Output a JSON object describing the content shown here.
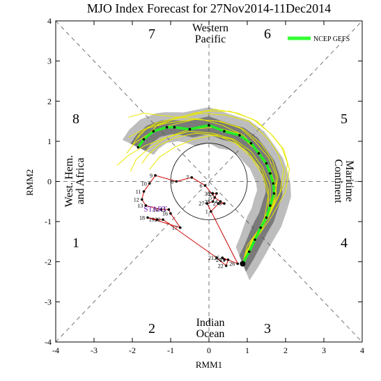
{
  "chart_data": {
    "type": "scatter",
    "title": "MJO Index Forecast for 27Nov2014-11Dec2014",
    "xlabel": "RMM1",
    "ylabel": "RMM2",
    "xlim": [
      -4,
      4
    ],
    "ylim": [
      -4,
      4
    ],
    "xticks": [
      "-4",
      "-3",
      "-2",
      "-1",
      "0",
      "1",
      "2",
      "3",
      "4"
    ],
    "yticks": [
      "-4",
      "-3",
      "-2",
      "-1",
      "0",
      "1",
      "2",
      "3",
      "4"
    ],
    "phases": [
      "1",
      "2",
      "3",
      "4",
      "5",
      "6",
      "7",
      "8"
    ],
    "regions": {
      "top": [
        "Western",
        "Pacific"
      ],
      "bottom": [
        "Indian",
        "Ocean"
      ],
      "left": [
        "West. Hem.",
        "and Africa"
      ],
      "right": [
        "Maritime",
        "Continent"
      ]
    },
    "legend": {
      "label": "NCEP GEFS",
      "color": "#33ff33",
      "position": "top-right"
    },
    "start_label": "START",
    "colors": {
      "observed": "#cc0000",
      "forecast_mean": "#22ee22",
      "members": "#e8e800",
      "spread_outer": "#bdbdbd",
      "spread_inner": "#7a7a7a"
    },
    "observed": {
      "name": "observed",
      "points": [
        {
          "day": 1,
          "x": 0.05,
          "y": -0.75
        },
        {
          "day": 2,
          "x": 0.25,
          "y": -0.55
        },
        {
          "day": 3,
          "x": 0.4,
          "y": -0.55
        },
        {
          "day": 4,
          "x": 0.3,
          "y": -0.5
        },
        {
          "day": 5,
          "x": 0.15,
          "y": -0.4
        },
        {
          "day": 6,
          "x": -0.1,
          "y": -0.1
        },
        {
          "day": 7,
          "x": -0.45,
          "y": 0.1
        },
        {
          "day": 8,
          "x": -0.85,
          "y": 0.0
        },
        {
          "day": 9,
          "x": -1.4,
          "y": 0.15
        },
        {
          "day": 10,
          "x": -1.55,
          "y": -0.05
        },
        {
          "day": 11,
          "x": -1.7,
          "y": -0.25
        },
        {
          "day": 12,
          "x": -1.75,
          "y": -0.45
        },
        {
          "day": 13,
          "x": -1.65,
          "y": -0.6
        },
        {
          "day": 14,
          "x": -1.25,
          "y": -0.7
        },
        {
          "day": 15,
          "x": -1.05,
          "y": -0.7
        },
        {
          "day": 16,
          "x": -1.0,
          "y": -0.8
        },
        {
          "day": 17,
          "x": -0.75,
          "y": -1.15
        },
        {
          "day": 18,
          "x": -1.6,
          "y": -0.9
        },
        {
          "day": 19,
          "x": -1.35,
          "y": -0.95
        },
        {
          "day": 20,
          "x": -1.2,
          "y": -0.95
        },
        {
          "day": 21,
          "x": 0.2,
          "y": -1.9
        },
        {
          "day": 22,
          "x": 0.45,
          "y": -2.1
        },
        {
          "day": 23,
          "x": 0.5,
          "y": -1.95
        },
        {
          "day": 24,
          "x": 0.4,
          "y": -1.95
        },
        {
          "day": 25,
          "x": 0.35,
          "y": -1.9
        },
        {
          "day": 26,
          "x": 0.75,
          "y": -2.05
        },
        {
          "day": 27,
          "x": -0.05,
          "y": -0.55
        },
        {
          "day": 28,
          "x": 0.1,
          "y": -0.5
        },
        {
          "day": 29,
          "x": 0.2,
          "y": -0.3
        },
        {
          "day": 30,
          "x": 0.1,
          "y": -0.3
        }
      ]
    },
    "forecast_mean": {
      "name": "NCEP GEFS",
      "x": [
        0.88,
        1.05,
        1.2,
        1.35,
        1.5,
        1.6,
        1.7,
        1.68,
        1.6,
        1.5,
        1.3,
        1.1,
        0.8,
        0.4,
        0.0,
        -0.5,
        -0.9,
        -1.1,
        -1.45,
        -1.7,
        -1.85
      ],
      "y": [
        -2.05,
        -1.75,
        -1.45,
        -1.15,
        -0.9,
        -0.6,
        -0.3,
        -0.05,
        0.2,
        0.45,
        0.7,
        0.95,
        1.15,
        1.25,
        1.4,
        1.3,
        1.35,
        1.35,
        1.25,
        1.05,
        0.85
      ]
    },
    "members": [
      {
        "x": [
          0.88,
          1.15,
          1.55,
          1.85,
          1.95,
          1.8,
          1.55,
          1.05,
          0.45,
          -0.2,
          -0.9,
          -1.6,
          -1.9
        ],
        "y": [
          -2.05,
          -1.4,
          -0.9,
          -0.3,
          0.3,
          0.7,
          1.05,
          1.5,
          1.65,
          1.7,
          1.55,
          1.35,
          1.05
        ]
      },
      {
        "x": [
          0.88,
          1.1,
          1.45,
          1.7,
          1.7,
          1.5,
          1.2,
          0.75,
          0.15,
          -0.5,
          -1.1,
          -1.6,
          -1.9,
          -2.05
        ],
        "y": [
          -2.05,
          -1.5,
          -1.05,
          -0.55,
          0.0,
          0.4,
          0.8,
          1.2,
          1.35,
          1.3,
          1.1,
          0.8,
          0.55,
          0.25
        ]
      },
      {
        "x": [
          0.88,
          1.0,
          1.3,
          1.55,
          1.55,
          1.4,
          1.05,
          0.6,
          0.1,
          -0.4,
          -0.9,
          -1.3,
          -1.55
        ],
        "y": [
          -2.05,
          -1.6,
          -1.2,
          -0.7,
          -0.2,
          0.25,
          0.7,
          1.05,
          1.15,
          1.05,
          0.85,
          0.6,
          0.3
        ]
      },
      {
        "x": [
          0.88,
          1.2,
          1.6,
          1.95,
          2.05,
          1.9,
          1.6,
          1.15,
          0.55,
          -0.1,
          -0.8,
          -1.4,
          -1.8,
          -2.0
        ],
        "y": [
          -2.05,
          -1.35,
          -0.75,
          -0.1,
          0.45,
          0.85,
          1.2,
          1.55,
          1.75,
          1.75,
          1.6,
          1.45,
          1.2,
          0.9
        ]
      },
      {
        "x": [
          0.88,
          1.05,
          1.4,
          1.7,
          1.8,
          1.65,
          1.35,
          0.9,
          0.3,
          -0.4,
          -1.1,
          -1.7,
          -2.1
        ],
        "y": [
          -2.05,
          -1.65,
          -1.1,
          -0.45,
          0.1,
          0.55,
          0.95,
          1.3,
          1.5,
          1.55,
          1.45,
          1.3,
          1.1
        ]
      },
      {
        "x": [
          0.88,
          1.15,
          1.5,
          1.75,
          1.75,
          1.55,
          1.2,
          0.8,
          0.25,
          -0.35,
          -1.0,
          -1.55,
          -1.95,
          -2.15
        ],
        "y": [
          -2.05,
          -1.45,
          -0.95,
          -0.4,
          0.15,
          0.6,
          1.0,
          1.35,
          1.5,
          1.55,
          1.4,
          1.2,
          0.95,
          0.7
        ]
      },
      {
        "x": [
          0.88,
          1.0,
          1.35,
          1.6,
          1.75,
          1.6,
          1.3,
          0.9,
          0.35,
          -0.2,
          -0.8,
          -1.3,
          -1.7,
          -2.1
        ],
        "y": [
          -2.05,
          -1.7,
          -1.25,
          -0.75,
          -0.15,
          0.3,
          0.75,
          1.15,
          1.4,
          1.55,
          1.6,
          1.65,
          1.7,
          1.6
        ]
      },
      {
        "x": [
          0.88,
          1.1,
          1.4,
          1.6,
          1.6,
          1.4,
          1.1,
          0.65,
          0.1,
          -0.5,
          -1.1,
          -1.65,
          -2.1,
          -2.4
        ],
        "y": [
          -2.05,
          -1.55,
          -1.1,
          -0.6,
          -0.1,
          0.35,
          0.75,
          1.05,
          1.2,
          1.25,
          1.1,
          0.9,
          0.65,
          0.4
        ]
      },
      {
        "x": [
          0.88,
          1.25,
          1.65,
          2.0,
          2.1,
          1.95,
          1.65,
          1.25,
          0.75,
          0.15,
          -0.4,
          -0.9,
          -1.35,
          -1.6
        ],
        "y": [
          -2.05,
          -1.4,
          -0.85,
          -0.25,
          0.3,
          0.8,
          1.15,
          1.5,
          1.7,
          1.8,
          1.7,
          1.55,
          1.4,
          1.15
        ]
      },
      {
        "x": [
          0.88,
          1.0,
          1.25,
          1.45,
          1.55,
          1.4,
          1.1,
          0.7,
          0.2,
          -0.35,
          -0.85,
          -1.3,
          -1.6,
          -1.75
        ],
        "y": [
          -2.05,
          -1.75,
          -1.35,
          -0.9,
          -0.35,
          0.15,
          0.6,
          0.95,
          1.15,
          1.2,
          1.1,
          0.9,
          0.65,
          0.45
        ]
      }
    ]
  }
}
